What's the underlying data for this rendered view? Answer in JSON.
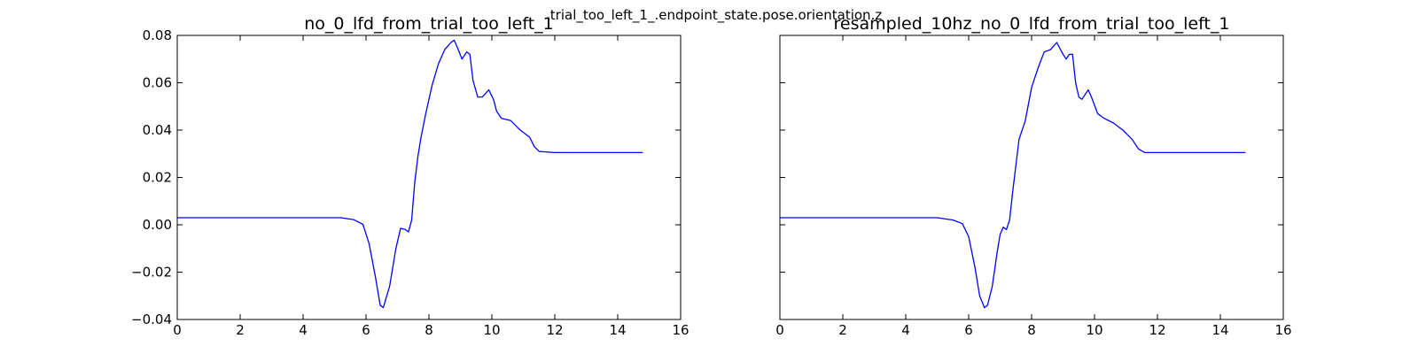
{
  "figure": {
    "suptitle": "trial_too_left_1_.endpoint_state.pose.orientation.z"
  },
  "chart_data": [
    {
      "type": "line",
      "title": "no_0_lfd_from_trial_too_left_1",
      "xlabel": "",
      "ylabel": "",
      "xlim": [
        0,
        16
      ],
      "ylim": [
        -0.04,
        0.08
      ],
      "xticks": [
        "0",
        "2",
        "4",
        "6",
        "8",
        "10",
        "12",
        "14",
        "16"
      ],
      "yticks": [
        "−0.04",
        "−0.02",
        "0.00",
        "0.02",
        "0.04",
        "0.06",
        "0.08"
      ],
      "line_color": "#0000ff",
      "series": [
        {
          "x": [
            0,
            1,
            2,
            3,
            4,
            5,
            5.2,
            5.6,
            5.9,
            6.1,
            6.3,
            6.45,
            6.55,
            6.75,
            6.95,
            7.1,
            7.25,
            7.35,
            7.45,
            7.55,
            7.65,
            7.75,
            7.9,
            8.1,
            8.3,
            8.5,
            8.7,
            8.8,
            8.9,
            9.05,
            9.2,
            9.3,
            9.4,
            9.55,
            9.7,
            9.9,
            10.05,
            10.15,
            10.3,
            10.6,
            10.9,
            11.2,
            11.35,
            11.5,
            12,
            13,
            14,
            14.8
          ],
          "y": [
            0.003,
            0.003,
            0.003,
            0.003,
            0.003,
            0.003,
            0.003,
            0.0022,
            0.0002,
            -0.008,
            -0.022,
            -0.034,
            -0.035,
            -0.026,
            -0.01,
            -0.0015,
            -0.002,
            -0.003,
            0.002,
            0.018,
            0.029,
            0.037,
            0.047,
            0.059,
            0.068,
            0.074,
            0.077,
            0.078,
            0.075,
            0.07,
            0.073,
            0.072,
            0.061,
            0.054,
            0.054,
            0.057,
            0.053,
            0.048,
            0.045,
            0.044,
            0.04,
            0.037,
            0.033,
            0.031,
            0.0305,
            0.0305,
            0.0305,
            0.0305
          ]
        }
      ]
    },
    {
      "type": "line",
      "title": "resampled_10hz_no_0_lfd_from_trial_too_left_1",
      "xlabel": "",
      "ylabel": "",
      "xlim": [
        0,
        16
      ],
      "ylim": [
        -0.04,
        0.08
      ],
      "xticks": [
        "0",
        "2",
        "4",
        "6",
        "8",
        "10",
        "12",
        "14",
        "16"
      ],
      "yticks": [],
      "line_color": "#0000ff",
      "series": [
        {
          "x": [
            0,
            1,
            2,
            3,
            4,
            5,
            5.5,
            5.8,
            6.0,
            6.2,
            6.35,
            6.5,
            6.6,
            6.75,
            6.9,
            7.0,
            7.1,
            7.2,
            7.3,
            7.4,
            7.6,
            7.8,
            8.0,
            8.2,
            8.4,
            8.6,
            8.8,
            9.0,
            9.1,
            9.2,
            9.3,
            9.4,
            9.5,
            9.6,
            9.8,
            9.9,
            10.1,
            10.3,
            10.6,
            10.9,
            11.2,
            11.4,
            11.6,
            12,
            13,
            14,
            14.8
          ],
          "y": [
            0.003,
            0.003,
            0.003,
            0.003,
            0.003,
            0.003,
            0.002,
            0.0005,
            -0.005,
            -0.018,
            -0.03,
            -0.035,
            -0.034,
            -0.026,
            -0.012,
            -0.004,
            -0.001,
            -0.002,
            0.002,
            0.014,
            0.036,
            0.044,
            0.058,
            0.066,
            0.073,
            0.074,
            0.077,
            0.072,
            0.07,
            0.072,
            0.072,
            0.06,
            0.054,
            0.053,
            0.057,
            0.054,
            0.047,
            0.045,
            0.043,
            0.04,
            0.036,
            0.032,
            0.0305,
            0.0305,
            0.0305,
            0.0305,
            0.0305
          ]
        }
      ]
    }
  ]
}
